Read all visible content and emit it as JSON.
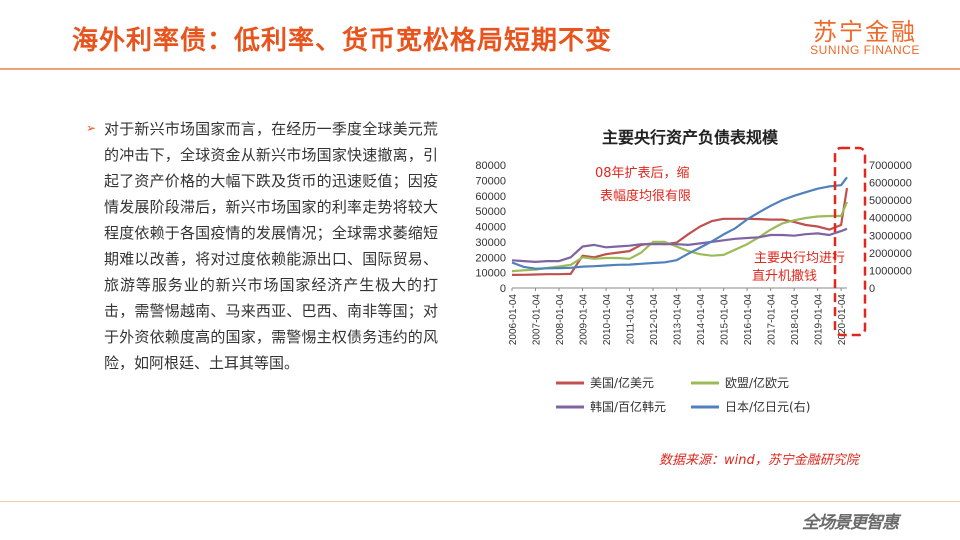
{
  "header": {
    "title": "海外利率债：低利率、货币宽松格局短期不变"
  },
  "logo": {
    "chinese": "苏宁金融",
    "english": "SUNING FINANCE"
  },
  "body": {
    "bullet": "➢",
    "paragraph": "对于新兴市场国家而言，在经历一季度全球美元荒的冲击下，全球资金从新兴市场国家快速撤离，引起了资产价格的大幅下跌及货币的迅速贬值；因疫情发展阶段滞后，新兴市场国家的利率走势将较大程度依赖于各国疫情的发展情况；全球需求萎缩短期难以改善，将对过度依赖能源出口、国际贸易、旅游等服务业的新兴市场国家经济产生极大的打击，需警惕越南、马来西亚、巴西、南非等国；对于外资依赖度高的国家，需警惕主权债务违约的风险，如阿根廷、土耳其等国。"
  },
  "footer": {
    "source": "数据来源：wind，苏宁金融研究院",
    "slogan": "全场景更智惠"
  },
  "chart_data": {
    "type": "line",
    "title": "主要央行资产负债表规模",
    "x": [
      "2006-01-04",
      "2006-07-04",
      "2007-01-04",
      "2007-07-04",
      "2008-01-04",
      "2008-07-04",
      "2009-01-04",
      "2009-07-04",
      "2010-01-04",
      "2010-07-04",
      "2011-01-04",
      "2011-07-04",
      "2012-01-04",
      "2012-07-04",
      "2013-01-04",
      "2013-07-04",
      "2014-01-04",
      "2014-07-04",
      "2015-01-04",
      "2015-07-04",
      "2016-01-04",
      "2016-07-04",
      "2017-01-04",
      "2017-07-04",
      "2018-01-04",
      "2018-07-04",
      "2019-01-04",
      "2019-07-04",
      "2020-01-04",
      "2020-04-04"
    ],
    "x_tick_labels": [
      "2006-01-04",
      "2007-01-04",
      "2008-01-04",
      "2009-01-04",
      "2010-01-04",
      "2011-01-04",
      "2012-01-04",
      "2013-01-04",
      "2014-01-04",
      "2015-01-04",
      "2016-01-04",
      "2017-01-04",
      "2018-01-04",
      "2019-01-04",
      "2020-01-04"
    ],
    "ylim_left": [
      0,
      80000
    ],
    "yticks_left": [
      "80000",
      "70000",
      "60000",
      "50000",
      "40000",
      "30000",
      "20000",
      "10000",
      "0"
    ],
    "ylim_right": [
      0,
      7000000
    ],
    "yticks_right": [
      "7000000",
      "6000000",
      "5000000",
      "4000000",
      "3000000",
      "2000000",
      "1000000",
      "0"
    ],
    "series": [
      {
        "name": "美国/亿美元",
        "color": "#c0504d",
        "axis": "left",
        "values": [
          8500,
          8600,
          8800,
          9000,
          9000,
          9200,
          21000,
          20000,
          22000,
          23000,
          24000,
          28000,
          29000,
          28500,
          29500,
          35000,
          40000,
          43500,
          45000,
          45000,
          45000,
          44800,
          44500,
          44500,
          43000,
          41000,
          40000,
          38000,
          41000,
          65000
        ]
      },
      {
        "name": "欧盟/亿欧元",
        "color": "#9bbb59",
        "axis": "left",
        "values": [
          11000,
          11500,
          12000,
          13000,
          14000,
          15000,
          20000,
          19000,
          19500,
          19500,
          19000,
          23000,
          30000,
          30000,
          27000,
          24000,
          22000,
          21000,
          21500,
          25000,
          28500,
          33000,
          38000,
          42000,
          44000,
          45500,
          46500,
          46800,
          46800,
          56000
        ]
      },
      {
        "name": "韩国/百亿韩元",
        "color": "#8064a2",
        "axis": "left",
        "values": [
          18000,
          17500,
          17000,
          17500,
          17500,
          20000,
          27000,
          28000,
          26500,
          27000,
          27500,
          28500,
          28500,
          28500,
          28500,
          28000,
          29000,
          30000,
          31000,
          32000,
          32500,
          33000,
          34500,
          34500,
          34000,
          35000,
          35500,
          34500,
          37000,
          38500
        ]
      },
      {
        "name": "日本/亿日元(右)",
        "color": "#4f81bd",
        "axis": "right",
        "values": [
          1450000,
          1200000,
          1100000,
          1120000,
          1130000,
          1150000,
          1220000,
          1240000,
          1280000,
          1320000,
          1330000,
          1380000,
          1420000,
          1460000,
          1580000,
          1950000,
          2300000,
          2650000,
          3050000,
          3400000,
          3900000,
          4300000,
          4680000,
          5000000,
          5250000,
          5450000,
          5650000,
          5780000,
          5850000,
          6300000
        ]
      }
    ],
    "annotations": [
      {
        "text_lines": [
          "08年扩表后，缩",
          "表幅度均很有限"
        ],
        "color": "#e1261c"
      },
      {
        "text_lines": [
          "主要央行均进行",
          "直升机撒钱"
        ],
        "color": "#e1261c"
      }
    ],
    "highlight_box": {
      "color": "#e1261c",
      "style": "dashed"
    },
    "legend_position": "bottom",
    "grid": false
  }
}
